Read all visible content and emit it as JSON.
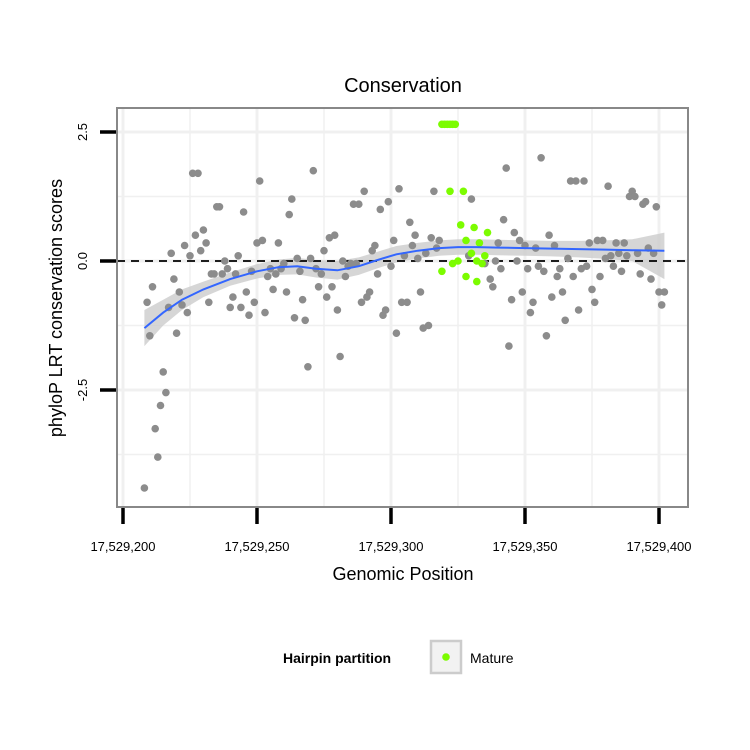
{
  "chart_data": {
    "type": "scatter",
    "title": "Conservation",
    "xlabel": "Genomic Position",
    "ylabel": "phyloP LRT conservation scores",
    "xlim": [
      17529200,
      17529400
    ],
    "ylim": [
      -4.7,
      2.95
    ],
    "x_ticks": [
      17529200,
      17529250,
      17529300,
      17529350,
      17529400
    ],
    "x_tick_labels": [
      "17,529,200",
      "17,529,250",
      "17,529,300",
      "17,529,350",
      "17,529,400"
    ],
    "y_ticks": [
      -2.5,
      0.0,
      2.5
    ],
    "y_tick_labels": [
      "-2.5",
      "0.0",
      "2.5"
    ],
    "grid": true,
    "reference_line": {
      "y": 0,
      "style": "dashed"
    },
    "legend": {
      "title": "Hairpin partition",
      "position": "bottom",
      "entries": [
        "Mature"
      ]
    },
    "colors": {
      "background_points": "#8c8c8c",
      "mature_points": "#7cfc00",
      "smooth_line": "#3366ff",
      "confidence_band": "#cccccc",
      "panel_border": "#888888",
      "grid": "#f0f0f0"
    },
    "series": [
      {
        "name": "",
        "points": [
          [
            17529208,
            -4.4
          ],
          [
            17529209,
            -0.8
          ],
          [
            17529210,
            -1.45
          ],
          [
            17529211,
            -0.5
          ],
          [
            17529212,
            -3.25
          ],
          [
            17529213,
            -3.8
          ],
          [
            17529214,
            -2.8
          ],
          [
            17529215,
            -2.15
          ],
          [
            17529216,
            -2.55
          ],
          [
            17529217,
            -0.9
          ],
          [
            17529218,
            0.15
          ],
          [
            17529219,
            -0.35
          ],
          [
            17529220,
            -1.4
          ],
          [
            17529221,
            -0.6
          ],
          [
            17529222,
            -0.85
          ],
          [
            17529223,
            0.3
          ],
          [
            17529224,
            -1.0
          ],
          [
            17529225,
            0.1
          ],
          [
            17529226,
            1.7
          ],
          [
            17529227,
            0.5
          ],
          [
            17529228,
            1.7
          ],
          [
            17529229,
            0.2
          ],
          [
            17529230,
            0.6
          ],
          [
            17529231,
            0.35
          ],
          [
            17529232,
            -0.8
          ],
          [
            17529233,
            -0.25
          ],
          [
            17529234,
            -0.25
          ],
          [
            17529235,
            1.05
          ],
          [
            17529236,
            1.05
          ],
          [
            17529237,
            -0.25
          ],
          [
            17529238,
            0.0
          ],
          [
            17529239,
            -0.15
          ],
          [
            17529240,
            -0.9
          ],
          [
            17529241,
            -0.7
          ],
          [
            17529242,
            -0.25
          ],
          [
            17529243,
            0.1
          ],
          [
            17529244,
            -0.9
          ],
          [
            17529245,
            0.95
          ],
          [
            17529246,
            -0.6
          ],
          [
            17529247,
            -1.05
          ],
          [
            17529248,
            -0.2
          ],
          [
            17529249,
            -0.8
          ],
          [
            17529250,
            0.35
          ],
          [
            17529251,
            1.55
          ],
          [
            17529252,
            0.4
          ],
          [
            17529253,
            -1.0
          ],
          [
            17529254,
            -0.3
          ],
          [
            17529255,
            -0.15
          ],
          [
            17529256,
            -0.55
          ],
          [
            17529257,
            -0.25
          ],
          [
            17529258,
            0.35
          ],
          [
            17529259,
            -0.15
          ],
          [
            17529260,
            -0.05
          ],
          [
            17529261,
            -0.6
          ],
          [
            17529262,
            0.9
          ],
          [
            17529263,
            1.2
          ],
          [
            17529264,
            -1.1
          ],
          [
            17529265,
            0.05
          ],
          [
            17529266,
            -0.2
          ],
          [
            17529267,
            -0.75
          ],
          [
            17529268,
            -1.15
          ],
          [
            17529269,
            -2.05
          ],
          [
            17529270,
            0.05
          ],
          [
            17529271,
            1.75
          ],
          [
            17529272,
            -0.15
          ],
          [
            17529273,
            -0.5
          ],
          [
            17529274,
            -0.25
          ],
          [
            17529275,
            0.2
          ],
          [
            17529276,
            -0.7
          ],
          [
            17529277,
            0.45
          ],
          [
            17529278,
            -0.5
          ],
          [
            17529279,
            0.5
          ],
          [
            17529280,
            -0.95
          ],
          [
            17529281,
            -1.85
          ],
          [
            17529282,
            0.0
          ],
          [
            17529283,
            -0.3
          ],
          [
            17529284,
            -0.1
          ],
          [
            17529285,
            -0.05
          ],
          [
            17529286,
            1.1
          ],
          [
            17529287,
            -0.05
          ],
          [
            17529288,
            1.1
          ],
          [
            17529289,
            -0.8
          ],
          [
            17529290,
            1.35
          ],
          [
            17529291,
            -0.7
          ],
          [
            17529292,
            -0.6
          ],
          [
            17529293,
            0.2
          ],
          [
            17529294,
            0.3
          ],
          [
            17529295,
            -0.25
          ],
          [
            17529296,
            1.0
          ],
          [
            17529297,
            -1.05
          ],
          [
            17529298,
            -0.95
          ],
          [
            17529299,
            1.15
          ],
          [
            17529300,
            -0.1
          ],
          [
            17529301,
            0.4
          ],
          [
            17529302,
            -1.4
          ],
          [
            17529303,
            1.4
          ],
          [
            17529304,
            -0.8
          ],
          [
            17529305,
            0.1
          ],
          [
            17529306,
            -0.8
          ],
          [
            17529307,
            0.75
          ],
          [
            17529308,
            0.3
          ],
          [
            17529309,
            0.5
          ],
          [
            17529310,
            0.05
          ],
          [
            17529311,
            -0.6
          ],
          [
            17529312,
            -1.3
          ],
          [
            17529313,
            0.15
          ],
          [
            17529314,
            -1.25
          ],
          [
            17529315,
            0.45
          ],
          [
            17529316,
            1.35
          ],
          [
            17529317,
            0.25
          ],
          [
            17529318,
            0.4
          ],
          [
            17529329,
            0.1
          ],
          [
            17529330,
            1.2
          ],
          [
            17529335,
            -0.05
          ],
          [
            17529337,
            -0.35
          ],
          [
            17529338,
            -0.5
          ],
          [
            17529339,
            0.0
          ],
          [
            17529340,
            0.35
          ],
          [
            17529341,
            -0.15
          ],
          [
            17529342,
            0.8
          ],
          [
            17529343,
            1.8
          ],
          [
            17529344,
            -1.65
          ],
          [
            17529345,
            -0.75
          ],
          [
            17529346,
            0.55
          ],
          [
            17529347,
            0.0
          ],
          [
            17529348,
            0.4
          ],
          [
            17529349,
            -0.6
          ],
          [
            17529350,
            0.3
          ],
          [
            17529351,
            -0.15
          ],
          [
            17529352,
            -1.0
          ],
          [
            17529353,
            -0.8
          ],
          [
            17529354,
            0.25
          ],
          [
            17529355,
            -0.1
          ],
          [
            17529356,
            2.0
          ],
          [
            17529357,
            -0.2
          ],
          [
            17529358,
            -1.45
          ],
          [
            17529359,
            0.5
          ],
          [
            17529360,
            -0.7
          ],
          [
            17529361,
            0.3
          ],
          [
            17529362,
            -0.3
          ],
          [
            17529363,
            -0.15
          ],
          [
            17529364,
            -0.6
          ],
          [
            17529365,
            -1.15
          ],
          [
            17529366,
            0.05
          ],
          [
            17529367,
            1.55
          ],
          [
            17529368,
            -0.3
          ],
          [
            17529369,
            1.55
          ],
          [
            17529370,
            -0.95
          ],
          [
            17529371,
            -0.15
          ],
          [
            17529372,
            1.55
          ],
          [
            17529373,
            -0.1
          ],
          [
            17529374,
            0.35
          ],
          [
            17529375,
            -0.55
          ],
          [
            17529376,
            -0.8
          ],
          [
            17529377,
            0.4
          ],
          [
            17529378,
            -0.3
          ],
          [
            17529379,
            0.4
          ],
          [
            17529380,
            0.05
          ],
          [
            17529381,
            1.45
          ],
          [
            17529382,
            0.1
          ],
          [
            17529383,
            -0.1
          ],
          [
            17529384,
            0.35
          ],
          [
            17529385,
            0.15
          ],
          [
            17529386,
            -0.2
          ],
          [
            17529387,
            0.35
          ],
          [
            17529388,
            0.1
          ],
          [
            17529389,
            1.25
          ],
          [
            17529390,
            1.35
          ],
          [
            17529391,
            1.25
          ],
          [
            17529392,
            0.15
          ],
          [
            17529393,
            -0.25
          ],
          [
            17529394,
            1.1
          ],
          [
            17529395,
            1.15
          ],
          [
            17529396,
            0.25
          ],
          [
            17529397,
            -0.35
          ],
          [
            17529398,
            0.15
          ],
          [
            17529399,
            1.05
          ],
          [
            17529400,
            -0.6
          ],
          [
            17529401,
            -0.85
          ],
          [
            17529402,
            -0.6
          ]
        ]
      },
      {
        "name": "Mature",
        "points": [
          [
            17529319,
            2.65
          ],
          [
            17529320,
            2.65
          ],
          [
            17529321,
            2.65
          ],
          [
            17529322,
            2.65
          ],
          [
            17529323,
            2.65
          ],
          [
            17529324,
            2.65
          ],
          [
            17529322,
            1.35
          ],
          [
            17529327,
            1.35
          ],
          [
            17529326,
            0.7
          ],
          [
            17529331,
            0.65
          ],
          [
            17529336,
            0.55
          ],
          [
            17529328,
            0.4
          ],
          [
            17529333,
            0.35
          ],
          [
            17529330,
            0.15
          ],
          [
            17529335,
            0.1
          ],
          [
            17529323,
            -0.05
          ],
          [
            17529325,
            0.0
          ],
          [
            17529332,
            0.0
          ],
          [
            17529334,
            -0.05
          ],
          [
            17529319,
            -0.2
          ],
          [
            17529328,
            -0.3
          ],
          [
            17529332,
            -0.4
          ]
        ]
      }
    ],
    "smooth": {
      "x": [
        17529208,
        17529215,
        17529222,
        17529230,
        17529240,
        17529250,
        17529258,
        17529265,
        17529272,
        17529280,
        17529288,
        17529295,
        17529302,
        17529310,
        17529318,
        17529325,
        17529332,
        17529340,
        17529350,
        17529360,
        17529370,
        17529380,
        17529390,
        17529402
      ],
      "y": [
        -1.3,
        -1.0,
        -0.75,
        -0.55,
        -0.35,
        -0.2,
        -0.12,
        -0.1,
        -0.15,
        -0.18,
        -0.1,
        0.02,
        0.13,
        0.2,
        0.25,
        0.27,
        0.27,
        0.26,
        0.25,
        0.24,
        0.23,
        0.22,
        0.21,
        0.2
      ],
      "lower": [
        -1.65,
        -1.25,
        -0.95,
        -0.7,
        -0.48,
        -0.34,
        -0.27,
        -0.26,
        -0.32,
        -0.36,
        -0.27,
        -0.14,
        -0.03,
        0.05,
        0.1,
        0.12,
        0.12,
        0.11,
        0.1,
        0.09,
        0.07,
        0.04,
        0.0,
        -0.35
      ],
      "upper": [
        -0.95,
        -0.75,
        -0.55,
        -0.4,
        -0.22,
        -0.06,
        0.03,
        0.06,
        0.02,
        0.0,
        0.07,
        0.18,
        0.29,
        0.35,
        0.4,
        0.42,
        0.42,
        0.41,
        0.4,
        0.39,
        0.39,
        0.4,
        0.42,
        0.55
      ]
    }
  }
}
